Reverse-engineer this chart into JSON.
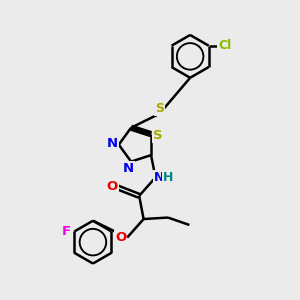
{
  "background_color": "#ebebeb",
  "bond_color": "#000000",
  "bond_width": 1.8,
  "atom_colors": {
    "N": "#0000ee",
    "O": "#ee0000",
    "S": "#aaaa00",
    "Cl": "#88bb00",
    "F": "#ee00ee",
    "H": "#008888",
    "C": "#000000"
  },
  "fig_w": 3.0,
  "fig_h": 3.0,
  "dpi": 100
}
